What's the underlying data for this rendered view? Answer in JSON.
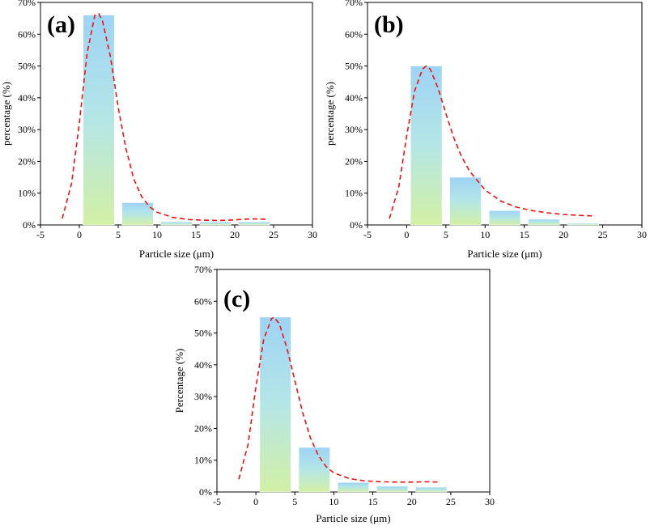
{
  "chart_data": [
    {
      "type": "bar",
      "panel_label": "(a)",
      "xlabel": "Particle size (μm)",
      "ylabel": "percentage (%)",
      "xlim": [
        -5,
        30
      ],
      "ylim": [
        0,
        70
      ],
      "xticks": [
        -5,
        0,
        5,
        10,
        15,
        20,
        25,
        30
      ],
      "xtick_labels": [
        "-5",
        "0",
        "5",
        "10",
        "15",
        "20",
        "25",
        "30"
      ],
      "yticks": [
        0,
        10,
        20,
        30,
        40,
        50,
        60,
        70
      ],
      "ytick_labels": [
        "0%",
        "10%",
        "20%",
        "30%",
        "40%",
        "50%",
        "60%",
        "70%"
      ],
      "bins": [
        [
          0.5,
          4.5
        ],
        [
          5.5,
          9.5
        ],
        [
          10.5,
          14.5
        ],
        [
          15.5,
          19.5
        ],
        [
          20.5,
          24.5
        ]
      ],
      "values": [
        66,
        7,
        1,
        1,
        1
      ],
      "fit_curve": [
        [
          -2.2,
          2
        ],
        [
          -1,
          13
        ],
        [
          0,
          32
        ],
        [
          1,
          54
        ],
        [
          2,
          66
        ],
        [
          2.5,
          66.5
        ],
        [
          3,
          64
        ],
        [
          4,
          53
        ],
        [
          5,
          37
        ],
        [
          6,
          24
        ],
        [
          7,
          14.5
        ],
        [
          8,
          9
        ],
        [
          9,
          5.8
        ],
        [
          10,
          4
        ],
        [
          12,
          2.4
        ],
        [
          14,
          1.7
        ],
        [
          16,
          1.5
        ],
        [
          18,
          1.4
        ],
        [
          20,
          1.6
        ],
        [
          22,
          1.9
        ],
        [
          24,
          1.8
        ]
      ],
      "fit_style": "red dashed"
    },
    {
      "type": "bar",
      "panel_label": "(b)",
      "xlabel": "Particle size (μm)",
      "ylabel": "percentage (%)",
      "xlim": [
        -5,
        30
      ],
      "ylim": [
        0,
        70
      ],
      "xticks": [
        -5,
        0,
        5,
        10,
        15,
        20,
        25,
        30
      ],
      "xtick_labels": [
        "-5",
        "0",
        "5",
        "10",
        "15",
        "20",
        "25",
        "30"
      ],
      "yticks": [
        0,
        10,
        20,
        30,
        40,
        50,
        60,
        70
      ],
      "ytick_labels": [
        "0%",
        "10%",
        "20%",
        "30%",
        "40%",
        "50%",
        "60%",
        "70%"
      ],
      "bins": [
        [
          0.5,
          4.5
        ],
        [
          5.5,
          9.5
        ],
        [
          10.5,
          14.5
        ],
        [
          15.5,
          19.5
        ],
        [
          20.5,
          24.5
        ]
      ],
      "values": [
        50,
        15,
        4.5,
        1.8,
        0.5
      ],
      "fit_curve": [
        [
          -2.2,
          2
        ],
        [
          -1,
          12
        ],
        [
          0,
          28
        ],
        [
          1,
          42
        ],
        [
          2,
          49
        ],
        [
          2.5,
          50
        ],
        [
          3,
          49
        ],
        [
          4,
          43
        ],
        [
          5,
          35
        ],
        [
          6,
          27.5
        ],
        [
          7,
          21.5
        ],
        [
          8,
          17
        ],
        [
          10,
          11
        ],
        [
          12,
          7.5
        ],
        [
          14,
          5.6
        ],
        [
          16,
          4.5
        ],
        [
          18,
          3.8
        ],
        [
          20,
          3.3
        ],
        [
          22,
          3
        ],
        [
          24,
          2.8
        ]
      ],
      "fit_style": "red dashed"
    },
    {
      "type": "bar",
      "panel_label": "(c)",
      "xlabel": "Particle size (μm)",
      "ylabel": "Percentage (%)",
      "xlim": [
        -5,
        30
      ],
      "ylim": [
        0,
        70
      ],
      "xticks": [
        -5,
        0,
        5,
        10,
        15,
        20,
        25,
        30
      ],
      "xtick_labels": [
        "-5",
        "0",
        "5",
        "10",
        "15",
        "20",
        "25",
        "30"
      ],
      "yticks": [
        0,
        10,
        20,
        30,
        40,
        50,
        60,
        70
      ],
      "ytick_labels": [
        "0%",
        "10%",
        "20%",
        "30%",
        "40%",
        "50%",
        "60%",
        "70%"
      ],
      "bins": [
        [
          0.5,
          4.5
        ],
        [
          5.5,
          9.5
        ],
        [
          10.5,
          14.5
        ],
        [
          15.5,
          19.5
        ],
        [
          20.5,
          24.5
        ]
      ],
      "values": [
        55,
        14,
        3,
        1.8,
        1.5
      ],
      "fit_curve": [
        [
          -2.2,
          4
        ],
        [
          -1,
          15
        ],
        [
          0,
          33
        ],
        [
          1,
          48
        ],
        [
          2,
          54.5
        ],
        [
          2.3,
          55
        ],
        [
          3,
          53
        ],
        [
          4,
          45
        ],
        [
          5,
          35
        ],
        [
          6,
          25
        ],
        [
          7,
          17
        ],
        [
          8,
          11.5
        ],
        [
          9,
          8
        ],
        [
          10,
          6
        ],
        [
          12,
          4.2
        ],
        [
          14,
          3.5
        ],
        [
          16,
          3.2
        ],
        [
          18,
          3.1
        ],
        [
          20,
          3.1
        ],
        [
          22,
          3.2
        ],
        [
          23.5,
          3.1
        ]
      ],
      "fit_style": "red dashed"
    }
  ]
}
